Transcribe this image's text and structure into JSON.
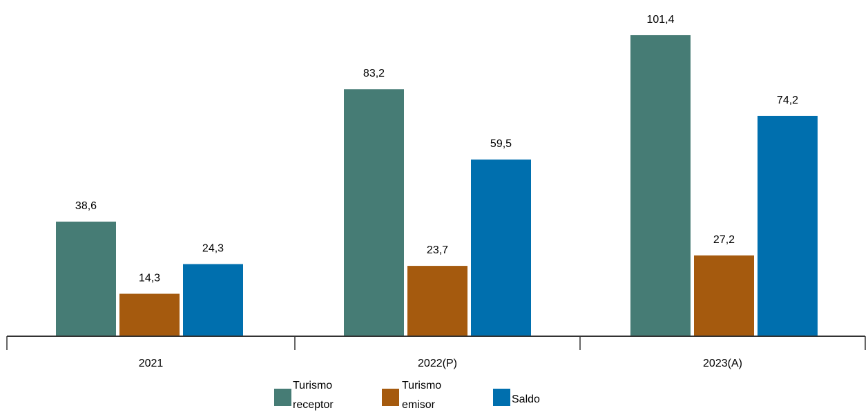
{
  "chart_data": {
    "type": "bar",
    "categories": [
      "2021",
      "2022(P)",
      "2023(A)"
    ],
    "series": [
      {
        "name": "Turismo receptor",
        "legend_lines": [
          "Turismo",
          "receptor"
        ],
        "color": "#467c75",
        "values": [
          38.6,
          83.2,
          101.4
        ],
        "labels": [
          "38,6",
          "83,2",
          "101,4"
        ]
      },
      {
        "name": "Turismo emisor",
        "legend_lines": [
          "Turismo",
          "emisor"
        ],
        "color": "#a55a0e",
        "values": [
          14.3,
          23.7,
          27.2
        ],
        "labels": [
          "14,3",
          "23,7",
          "27,2"
        ]
      },
      {
        "name": "Saldo",
        "legend_lines": [
          "Saldo"
        ],
        "color": "#006fae",
        "values": [
          24.3,
          59.5,
          74.2
        ],
        "labels": [
          "24,3",
          "59,5",
          "74,2"
        ]
      }
    ],
    "ylim": [
      0,
      110
    ],
    "grid": false,
    "legend_position": "bottom",
    "axis_color": "#333333"
  }
}
